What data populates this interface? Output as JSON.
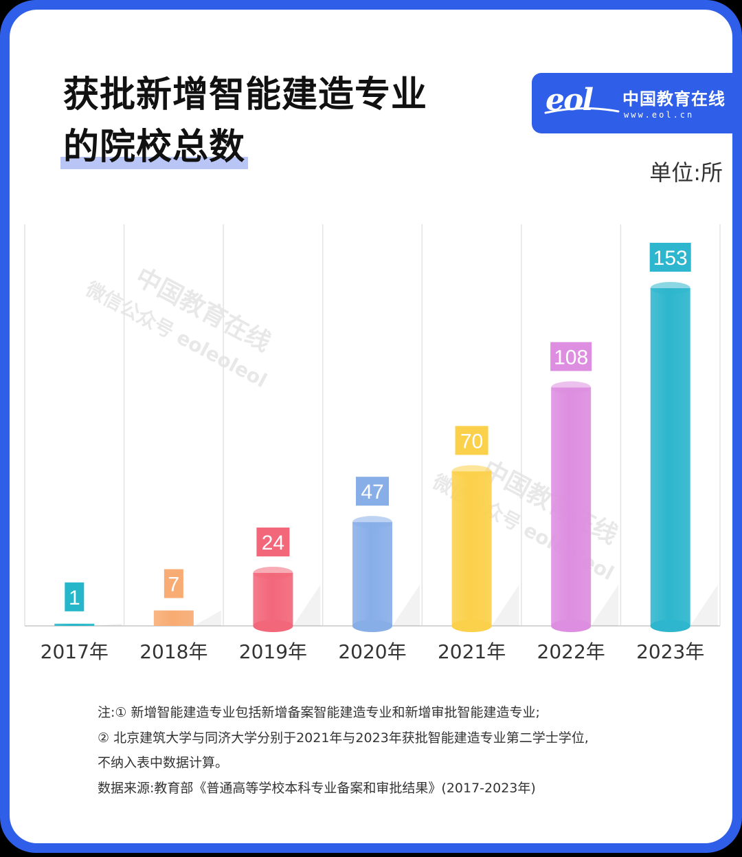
{
  "title": {
    "line1": "获批新增智能建造专业",
    "line2": "的院校总数"
  },
  "logo": {
    "mark": "eol",
    "name": "中国教育在线",
    "url": "www.eol.cn"
  },
  "unit": "单位:所",
  "watermark": {
    "line1": "中国教育在线",
    "line2": "微信公众号 eoleoleol"
  },
  "chart_data": {
    "type": "bar",
    "categories": [
      "2017年",
      "2018年",
      "2019年",
      "2020年",
      "2021年",
      "2022年",
      "2023年"
    ],
    "values": [
      1,
      7,
      24,
      47,
      70,
      108,
      153
    ],
    "value_labels": [
      "1",
      "7",
      "24",
      "47",
      "70",
      "108",
      "153"
    ],
    "ylim": [
      0,
      160
    ],
    "colors": [
      "#25b7c9",
      "#f8ab72",
      "#f2677a",
      "#88aee8",
      "#fbd04a",
      "#dd8ee0",
      "#2db6cd"
    ],
    "grid": "vertical"
  },
  "notes": [
    "注:① 新增智能建造专业包括新增备案智能建造专业和新增审批智能建造专业;",
    "② 北京建筑大学与同济大学分别于2021年与2023年获批智能建造专业第二学士学位,",
    "不纳入表中数据计算。",
    "数据来源:教育部《普通高等学校本科专业备案和审批结果》(2017-2023年)"
  ]
}
